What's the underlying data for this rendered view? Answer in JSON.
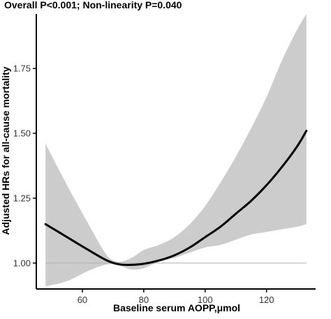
{
  "chart_data": {
    "type": "line",
    "title": "Overall P<0.001; Non-linearity P=0.040",
    "xlabel": "Baseline serum AOPP,μmol",
    "ylabel": "Adjusted HRs for all-cause mortality",
    "xlim": [
      45,
      136
    ],
    "ylim": [
      0.9,
      1.96
    ],
    "x_ticks": [
      60,
      80,
      100,
      120
    ],
    "y_ticks": [
      1.0,
      1.25,
      1.5,
      1.75
    ],
    "x_tick_labels": [
      "60",
      "80",
      "100",
      "120"
    ],
    "y_tick_labels": [
      "1.00",
      "1.25",
      "1.50",
      "1.75"
    ],
    "reference_line_y": 1.0,
    "grid": false,
    "colors": {
      "line": "#000000",
      "ci_band": "#cccccc",
      "axis": "#000000"
    },
    "series": [
      {
        "type": "line",
        "x": [
          48,
          55,
          62,
          68,
          72,
          76,
          80,
          85,
          90,
          95,
          100,
          105,
          110,
          115,
          120,
          125,
          130,
          133
        ],
        "y": [
          1.15,
          1.1,
          1.05,
          1.01,
          0.995,
          0.993,
          0.997,
          1.01,
          1.03,
          1.06,
          1.1,
          1.14,
          1.19,
          1.24,
          1.3,
          1.37,
          1.45,
          1.51
        ]
      },
      {
        "type": "ci_band",
        "x": [
          48,
          55,
          62,
          68,
          72,
          76,
          80,
          85,
          90,
          95,
          100,
          105,
          110,
          115,
          120,
          125,
          130,
          133
        ],
        "lower": [
          0.91,
          0.93,
          0.97,
          0.995,
          0.99,
          0.975,
          0.98,
          1.005,
          1.02,
          1.04,
          1.06,
          1.07,
          1.09,
          1.11,
          1.12,
          1.13,
          1.14,
          1.15
        ],
        "upper": [
          1.46,
          1.3,
          1.15,
          1.03,
          1.005,
          1.02,
          1.05,
          1.07,
          1.1,
          1.15,
          1.22,
          1.31,
          1.41,
          1.52,
          1.64,
          1.78,
          1.9,
          1.96
        ]
      }
    ]
  }
}
